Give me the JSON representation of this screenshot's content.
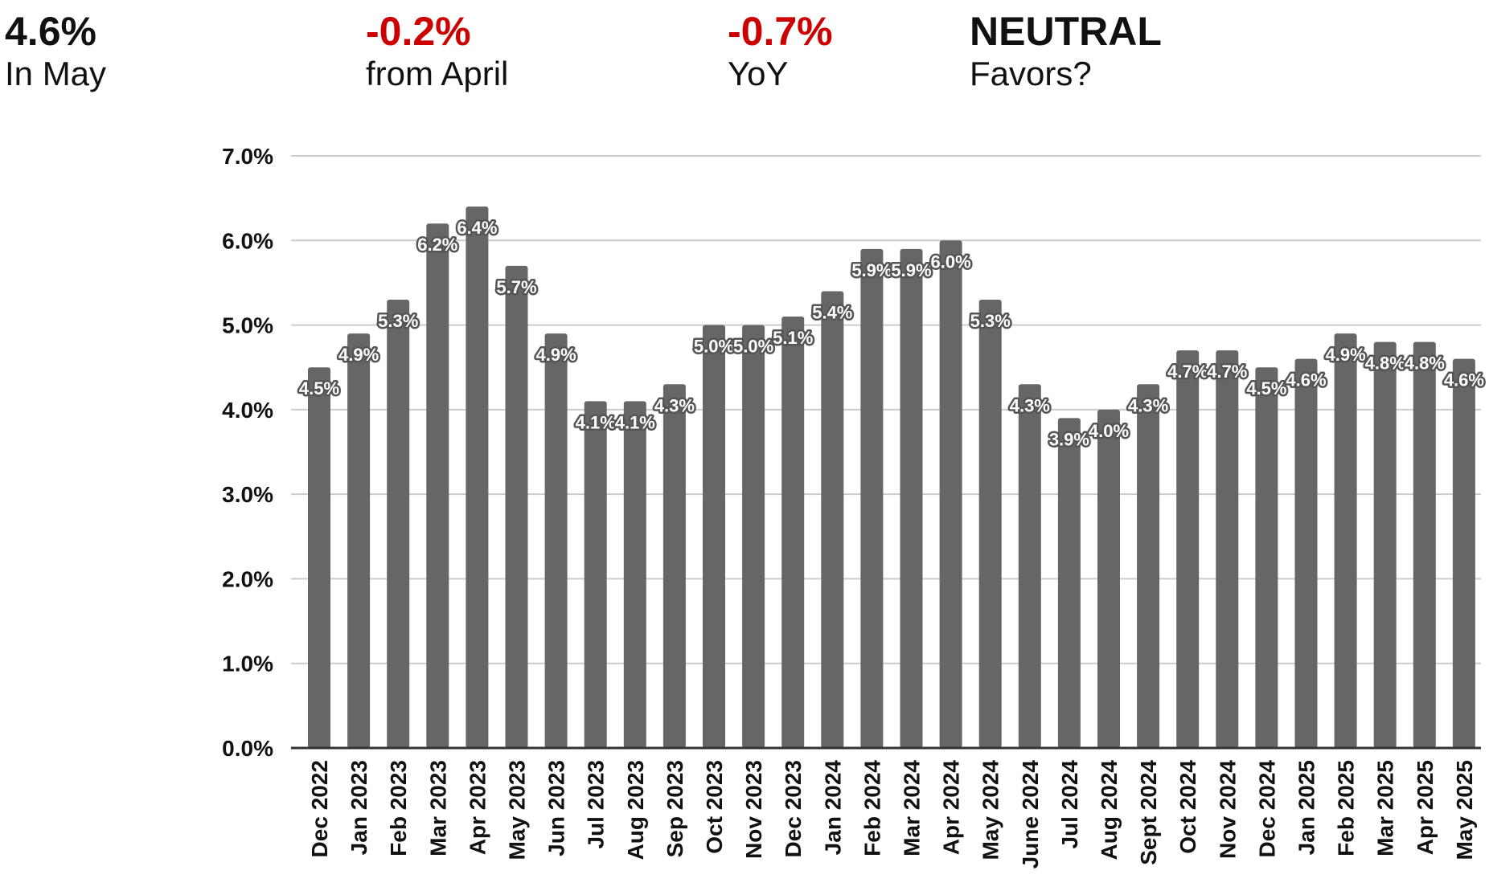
{
  "header": {
    "stats": [
      {
        "value": "4.6%",
        "label": "In May",
        "color": "#111111"
      },
      {
        "value": "-0.2%",
        "label": "from April",
        "color": "#cc0000"
      },
      {
        "value": "-0.7%",
        "label": "YoY",
        "color": "#cc0000"
      },
      {
        "value": "NEUTRAL",
        "label": "Favors?",
        "color": "#111111"
      }
    ]
  },
  "chart_data": {
    "type": "bar",
    "title": "",
    "xlabel": "",
    "ylabel": "",
    "ylim": [
      0,
      7
    ],
    "y_ticks": [
      "0.0%",
      "1.0%",
      "2.0%",
      "3.0%",
      "4.0%",
      "5.0%",
      "6.0%",
      "7.0%"
    ],
    "grid": true,
    "bar_color": "#666666",
    "categories": [
      "Dec 2022",
      "Jan 2023",
      "Feb 2023",
      "Mar 2023",
      "Apr 2023",
      "May 2023",
      "Jun 2023",
      "Jul 2023",
      "Aug 2023",
      "Sep 2023",
      "Oct 2023",
      "Nov 2023",
      "Dec 2023",
      "Jan 2024",
      "Feb 2024",
      "Mar 2024",
      "Apr 2024",
      "May 2024",
      "June 2024",
      "Jul 2024",
      "Aug 2024",
      "Sept 2024",
      "Oct 2024",
      "Nov 2024",
      "Dec 2024",
      "Jan 2025",
      "Feb 2025",
      "Mar 2025",
      "Apr 2025",
      "May 2025"
    ],
    "values": [
      4.5,
      4.9,
      5.3,
      6.2,
      6.4,
      5.7,
      4.9,
      4.1,
      4.1,
      4.3,
      5.0,
      5.0,
      5.1,
      5.4,
      5.9,
      5.9,
      6.0,
      5.3,
      4.3,
      3.9,
      4.0,
      4.3,
      4.7,
      4.7,
      4.5,
      4.6,
      4.9,
      4.8,
      4.8,
      4.6
    ],
    "data_labels": [
      "4.5%",
      "4.9%",
      "5.3%",
      "6.2%",
      "6.4%",
      "5.7%",
      "4.9%",
      "4.1%",
      "4.1%",
      "4.3%",
      "5.0%",
      "5.0%",
      "5.1%",
      "5.4%",
      "5.9%",
      "5.9%",
      "6.0%",
      "5.3%",
      "4.3%",
      "3.9%",
      "4.0%",
      "4.3%",
      "4.7%",
      "4.7%",
      "4.5%",
      "4.6%",
      "4.9%",
      "4.8%",
      "4.8%",
      "4.6%"
    ]
  }
}
